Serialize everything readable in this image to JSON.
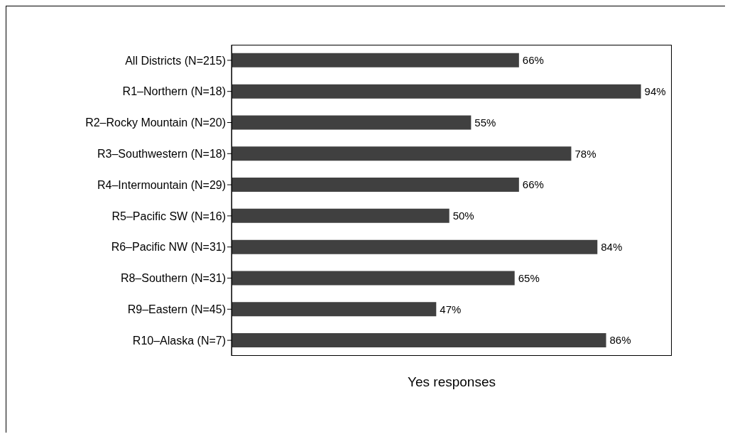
{
  "chart_data": {
    "type": "bar",
    "orientation": "horizontal",
    "xlabel": "Yes responses",
    "categories": [
      "All Districts (N=215)",
      "R1–Northern (N=18)",
      "R2–Rocky Mountain (N=20)",
      "R3–Southwestern (N=18)",
      "R4–Intermountain (N=29)",
      "R5–Pacific SW (N=16)",
      "R6–Pacific NW (N=31)",
      "R8–Southern (N=31)",
      "R9–Eastern (N=45)",
      "R10–Alaska (N=7)"
    ],
    "values": [
      66,
      94,
      55,
      78,
      66,
      50,
      84,
      65,
      47,
      86
    ],
    "value_labels": [
      "66%",
      "94%",
      "55%",
      "78%",
      "66%",
      "50%",
      "84%",
      "65%",
      "47%",
      "86%"
    ],
    "color": "#404040"
  }
}
